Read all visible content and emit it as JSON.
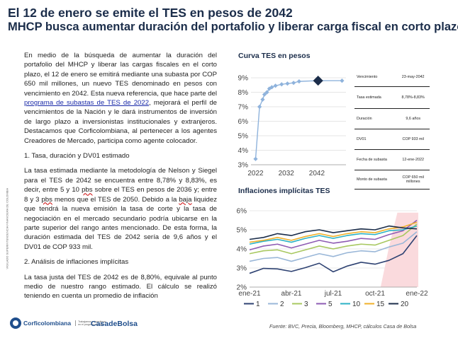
{
  "header": {
    "title": "El 12 de enero se emite el TES  en pesos de 2042",
    "subtitle": "MHCP busca aumentar duración del portafolio y liberar carga fiscal en corto plazo"
  },
  "body": {
    "p1_before_link": "En medio de la búsqueda de aumentar la duración del portafolio del MHCP y liberar las cargas fiscales en el corto plazo, el 12 de enero se emitirá mediante una subasta por COP 650 mil millones, un nuevo TES denominado en pesos con vencimiento en 2042. Esta nueva referencia, que hace parte del ",
    "p1_link": "programa de subastas de TES de 2022",
    "p1_after_link": ", mejorará el perfil de vencimientos de la Nación y le dará instrumentos de inversión de largo plazo a inversionistas institucionales y extranjeros. Destacamos que Corficolombiana, al pertenecer a los agentes Creadores de Mercado, participa como agente colocador.",
    "section1": "1. Tasa, duración y DV01 estimado",
    "p2_a": "La tasa estimada mediante la metodología de Nelson y Siegel para el TES de 2042 se encuentra entre 8,78% y 8,83%, es decir, entre 5 y 10 ",
    "p2_pbs1": "pbs",
    "p2_b": " sobre el TES en pesos de 2036 y; entre 8 y 3 ",
    "p2_pbs2": "pbs",
    "p2_c": " menos que el TES de 2050. Debido a la ",
    "p2_baja": "baja",
    "p2_d": " liquidez que tendrá la nueva emisión la tasa de corte y la tasa de negociación en el mercado secundario podría ubicarse en la parte superior del rango antes mencionado. De esta forma, la duración estimada del TES de 2042 sería de 9,6 años y el DV01 de COP 933 mil.",
    "section2": "2. Análisis de inflaciones implícitas",
    "p3": "La tasa justa del TES de 2042 es de 8,80%, equivale al punto medio de nuestro rango estimado. El cálculo se realizó teniendo en cuenta un promedio de inflación"
  },
  "side_label": "VIGILADO SUPERINTENDENCIA FINANCIERA DE COLOMBIA",
  "table": [
    {
      "label": "Vencimiento",
      "value": "23-may-2042"
    },
    {
      "label": "Tasa estimada",
      "value": "8,78%-8,83%"
    },
    {
      "label": "Duración",
      "value": "9,6 años"
    },
    {
      "label": "DV01",
      "value": "COP 933 mil"
    },
    {
      "label": "Fecha de subasta",
      "value": "12-ene-2022"
    },
    {
      "label": "Monto de subasta",
      "value": "COP 650 mil millones"
    }
  ],
  "source": "Fuente: BVC, Precia, Bloomberg, MHCP, cálculos Casa de Bolsa",
  "footer": {
    "logo1_name": "Corficolombiana",
    "logo1_tag": "Trabajamos e invertimos en el progreso del país",
    "logo2_name": "CasadeBolsa"
  },
  "colors": {
    "title": "#1b2d4a",
    "curve_line": "#8fb3dc",
    "curve_highlight": "#1b2d4a",
    "area": "#fadadd"
  },
  "chart_data": [
    {
      "type": "line",
      "title": "Curva TES en pesos",
      "x": [
        2022.0,
        2023.3,
        2024.3,
        2024.9,
        2025.7,
        2026.5,
        2027.3,
        2028.5,
        2030.5,
        2032.4,
        2034.4,
        2036.2,
        2042.4,
        2050.2
      ],
      "y": [
        3.4,
        7.0,
        7.5,
        7.85,
        8.0,
        8.25,
        8.35,
        8.45,
        8.55,
        8.6,
        8.65,
        8.75,
        8.8,
        8.8
      ],
      "highlight": {
        "x": 2042.4,
        "y": 8.8
      },
      "x_ticks": [
        "2022",
        "2032",
        "2042"
      ],
      "x_tick_values": [
        2022,
        2032,
        2042
      ],
      "y_ticks": [
        "3%",
        "4%",
        "5%",
        "6%",
        "7%",
        "8%",
        "9%"
      ],
      "xlim": [
        2020.5,
        2051.5
      ],
      "ylim": [
        3,
        9
      ],
      "grid": true
    },
    {
      "type": "line",
      "title": "Inflaciones implícitas TES",
      "x_ticks": [
        "ene-21",
        "abr-21",
        "jul-21",
        "oct-21",
        "ene-22"
      ],
      "x_tick_values": [
        0,
        3,
        6,
        9,
        12
      ],
      "y_ticks": [
        "2%",
        "3%",
        "4%",
        "5%",
        "6%"
      ],
      "ylim": [
        2,
        6
      ],
      "xlim": [
        0,
        12
      ],
      "area": {
        "values": [
          [
            0,
            0
          ],
          [
            9.4,
            0
          ],
          [
            10.0,
            2.1
          ],
          [
            10.6,
            3.9
          ],
          [
            12.1,
            3.9
          ],
          [
            12.1,
            0
          ]
        ]
      },
      "series": [
        {
          "name": "1",
          "color": "#2e4272",
          "values": [
            [
              0,
              2.72
            ],
            [
              1,
              2.98
            ],
            [
              2,
              2.95
            ],
            [
              3,
              2.82
            ],
            [
              4,
              3.02
            ],
            [
              5,
              3.25
            ],
            [
              6,
              2.8
            ],
            [
              7,
              3.1
            ],
            [
              8,
              3.3
            ],
            [
              9,
              3.2
            ],
            [
              10,
              3.4
            ],
            [
              11,
              3.75
            ],
            [
              12,
              4.7
            ]
          ]
        },
        {
          "name": "2",
          "color": "#9ab7d8",
          "values": [
            [
              0,
              3.35
            ],
            [
              1,
              3.5
            ],
            [
              2,
              3.55
            ],
            [
              3,
              3.35
            ],
            [
              4,
              3.55
            ],
            [
              5,
              3.75
            ],
            [
              6,
              3.6
            ],
            [
              7,
              3.8
            ],
            [
              8,
              3.9
            ],
            [
              9,
              3.85
            ],
            [
              10,
              4.1
            ],
            [
              11,
              4.3
            ],
            [
              12,
              4.9
            ]
          ]
        },
        {
          "name": "3",
          "color": "#a8c860",
          "values": [
            [
              0,
              3.75
            ],
            [
              1,
              3.9
            ],
            [
              2,
              3.95
            ],
            [
              3,
              3.75
            ],
            [
              4,
              3.95
            ],
            [
              5,
              4.15
            ],
            [
              6,
              4.0
            ],
            [
              7,
              4.15
            ],
            [
              8,
              4.25
            ],
            [
              9,
              4.2
            ],
            [
              10,
              4.45
            ],
            [
              11,
              4.7
            ],
            [
              12,
              5.3
            ]
          ]
        },
        {
          "name": "5",
          "color": "#8e5bb3",
          "values": [
            [
              0,
              3.95
            ],
            [
              1,
              4.15
            ],
            [
              2,
              4.25
            ],
            [
              3,
              4.05
            ],
            [
              4,
              4.25
            ],
            [
              5,
              4.45
            ],
            [
              6,
              4.3
            ],
            [
              7,
              4.4
            ],
            [
              8,
              4.55
            ],
            [
              9,
              4.5
            ],
            [
              10,
              4.75
            ],
            [
              11,
              4.95
            ],
            [
              12,
              5.5
            ]
          ]
        },
        {
          "name": "10",
          "color": "#2bb2c5",
          "values": [
            [
              0,
              4.25
            ],
            [
              1,
              4.4
            ],
            [
              2,
              4.5
            ],
            [
              3,
              4.35
            ],
            [
              4,
              4.55
            ],
            [
              5,
              4.7
            ],
            [
              6,
              4.55
            ],
            [
              7,
              4.7
            ],
            [
              8,
              4.8
            ],
            [
              9,
              4.75
            ],
            [
              10,
              4.95
            ],
            [
              11,
              5.0
            ],
            [
              12,
              5.2
            ]
          ]
        },
        {
          "name": "15",
          "color": "#f0b02a",
          "values": [
            [
              0,
              4.35
            ],
            [
              1,
              4.45
            ],
            [
              2,
              4.6
            ],
            [
              3,
              4.45
            ],
            [
              4,
              4.65
            ],
            [
              5,
              4.8
            ],
            [
              6,
              4.65
            ],
            [
              7,
              4.8
            ],
            [
              8,
              4.9
            ],
            [
              9,
              4.85
            ],
            [
              10,
              5.05
            ],
            [
              11,
              5.15
            ],
            [
              12,
              5.4
            ]
          ]
        },
        {
          "name": "20",
          "color": "#1b2d4a",
          "values": [
            [
              0,
              4.5
            ],
            [
              1,
              4.6
            ],
            [
              2,
              4.8
            ],
            [
              3,
              4.7
            ],
            [
              4,
              4.9
            ],
            [
              5,
              5.0
            ],
            [
              6,
              4.85
            ],
            [
              7,
              4.95
            ],
            [
              8,
              5.05
            ],
            [
              9,
              5.0
            ],
            [
              10,
              5.2
            ],
            [
              11,
              5.1
            ],
            [
              12,
              5.05
            ]
          ]
        }
      ],
      "legend_position": "bottom"
    }
  ]
}
